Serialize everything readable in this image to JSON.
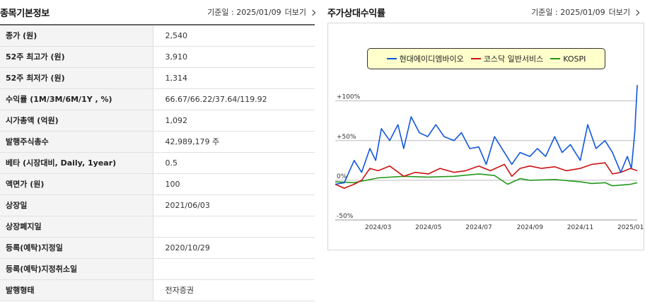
{
  "info": {
    "title": "종목기본정보",
    "base_date": "기준일 : 2025/01/09",
    "more_label": "더보기",
    "rows": [
      {
        "label": "종가 (원)",
        "value": "2,540"
      },
      {
        "label": "52주 최고가 (원)",
        "value": "3,910"
      },
      {
        "label": "52주 최저가 (원)",
        "value": "1,314"
      },
      {
        "label": "수익률 (1M/3M/6M/1Y , %)",
        "value": "66.67/66.22/37.64/119.92"
      },
      {
        "label": "시가총액 (억원)",
        "value": "1,092"
      },
      {
        "label": "발행주식총수",
        "value": "42,989,179 주"
      },
      {
        "label": "베타 (시장대비, Daily, 1year)",
        "value": "0.5"
      },
      {
        "label": "액면가 (원)",
        "value": "100"
      },
      {
        "label": "상장일",
        "value": "2021/06/03"
      },
      {
        "label": "상장폐지일",
        "value": ""
      },
      {
        "label": "등록(예탁)지정일",
        "value": "2020/10/29"
      },
      {
        "label": "등록(예탁)지정취소일",
        "value": ""
      },
      {
        "label": "발행형태",
        "value": "전자증권"
      }
    ]
  },
  "returns": {
    "title": "주가상대수익률",
    "base_date": "기준일 : 2025/01/09",
    "more_label": "더보기"
  },
  "chart_data": {
    "type": "line",
    "ylim": [
      -50,
      130
    ],
    "y_ticks": [
      100,
      50,
      0,
      -50
    ],
    "y_tick_labels": [
      "+100%",
      "+50%",
      "0%",
      "-50%"
    ],
    "x_range": [
      "2024-01-09",
      "2025-01-09"
    ],
    "x_ticks": [
      "2024-03-01",
      "2024-05-01",
      "2024-07-01",
      "2024-09-01",
      "2024-11-01",
      "2025-01-01"
    ],
    "x_tick_labels": [
      "2024/03",
      "2024/05",
      "2024/07",
      "2024/09",
      "2024/11",
      "2025/01"
    ],
    "legend_position": "top",
    "series": [
      {
        "name": "현대에이디엠바이오",
        "color": "#1155dd",
        "x": [
          "2024-01-09",
          "2024-01-20",
          "2024-02-01",
          "2024-02-10",
          "2024-02-20",
          "2024-02-27",
          "2024-03-05",
          "2024-03-15",
          "2024-03-25",
          "2024-04-01",
          "2024-04-10",
          "2024-04-20",
          "2024-04-30",
          "2024-05-10",
          "2024-05-20",
          "2024-06-01",
          "2024-06-10",
          "2024-06-20",
          "2024-07-01",
          "2024-07-10",
          "2024-07-20",
          "2024-08-01",
          "2024-08-10",
          "2024-08-20",
          "2024-09-01",
          "2024-09-10",
          "2024-09-20",
          "2024-10-01",
          "2024-10-10",
          "2024-10-20",
          "2024-11-01",
          "2024-11-10",
          "2024-11-20",
          "2024-12-01",
          "2024-12-10",
          "2024-12-20",
          "2024-12-28",
          "2025-01-02",
          "2025-01-06",
          "2025-01-09"
        ],
        "values": [
          -5,
          -3,
          25,
          10,
          40,
          25,
          65,
          50,
          70,
          40,
          80,
          60,
          55,
          70,
          55,
          50,
          60,
          40,
          42,
          20,
          55,
          35,
          20,
          35,
          30,
          40,
          30,
          55,
          35,
          45,
          25,
          70,
          40,
          50,
          35,
          10,
          30,
          15,
          60,
          120
        ]
      },
      {
        "name": "코스닥 일반서비스",
        "color": "#cc1111",
        "x": [
          "2024-01-09",
          "2024-01-20",
          "2024-02-01",
          "2024-02-10",
          "2024-02-20",
          "2024-03-01",
          "2024-03-15",
          "2024-04-01",
          "2024-04-15",
          "2024-05-01",
          "2024-05-15",
          "2024-06-01",
          "2024-06-15",
          "2024-07-01",
          "2024-07-15",
          "2024-08-01",
          "2024-08-10",
          "2024-08-20",
          "2024-09-01",
          "2024-09-15",
          "2024-10-01",
          "2024-10-15",
          "2024-11-01",
          "2024-11-15",
          "2024-12-01",
          "2024-12-10",
          "2024-12-20",
          "2025-01-01",
          "2025-01-09"
        ],
        "values": [
          -5,
          -10,
          -5,
          0,
          15,
          12,
          18,
          5,
          10,
          8,
          15,
          10,
          12,
          18,
          12,
          20,
          5,
          15,
          18,
          15,
          17,
          12,
          15,
          20,
          22,
          8,
          10,
          15,
          12
        ]
      },
      {
        "name": "KOSPI",
        "color": "#22991a",
        "x": [
          "2024-01-09",
          "2024-02-01",
          "2024-03-01",
          "2024-04-01",
          "2024-05-01",
          "2024-06-01",
          "2024-07-01",
          "2024-07-20",
          "2024-08-05",
          "2024-08-20",
          "2024-09-01",
          "2024-10-01",
          "2024-11-01",
          "2024-11-15",
          "2024-12-01",
          "2024-12-10",
          "2025-01-01",
          "2025-01-09"
        ],
        "values": [
          -2,
          -3,
          3,
          5,
          4,
          5,
          8,
          6,
          -5,
          2,
          0,
          1,
          -2,
          -4,
          -3,
          -7,
          -5,
          -3
        ]
      }
    ]
  }
}
